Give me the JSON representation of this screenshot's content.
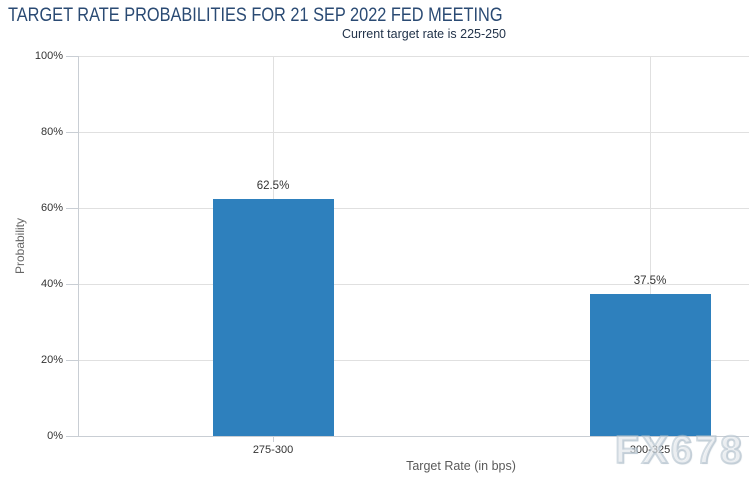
{
  "watermark": {
    "text": "FX678"
  },
  "chart_data": {
    "type": "bar",
    "title": "TARGET RATE PROBABILITIES FOR 21 SEP 2022 FED MEETING",
    "subtitle": "Current target rate is 225-250",
    "categories": [
      "275-300",
      "300-325"
    ],
    "values": [
      62.5,
      37.5
    ],
    "value_labels": [
      "62.5%",
      "37.5%"
    ],
    "xlabel": "Target Rate (in bps)",
    "ylabel": "Probability",
    "ylim": [
      0,
      100
    ],
    "yticks": [
      0,
      20,
      40,
      60,
      80,
      100
    ],
    "ytick_labels": [
      "0%",
      "20%",
      "40%",
      "60%",
      "80%",
      "100%"
    ],
    "grid": true,
    "legend": "none",
    "bar_color": "#2e80bd",
    "title_color": "#2a4a73",
    "grid_color": "#e0e0e0",
    "axis_color": "#c9ced4"
  }
}
